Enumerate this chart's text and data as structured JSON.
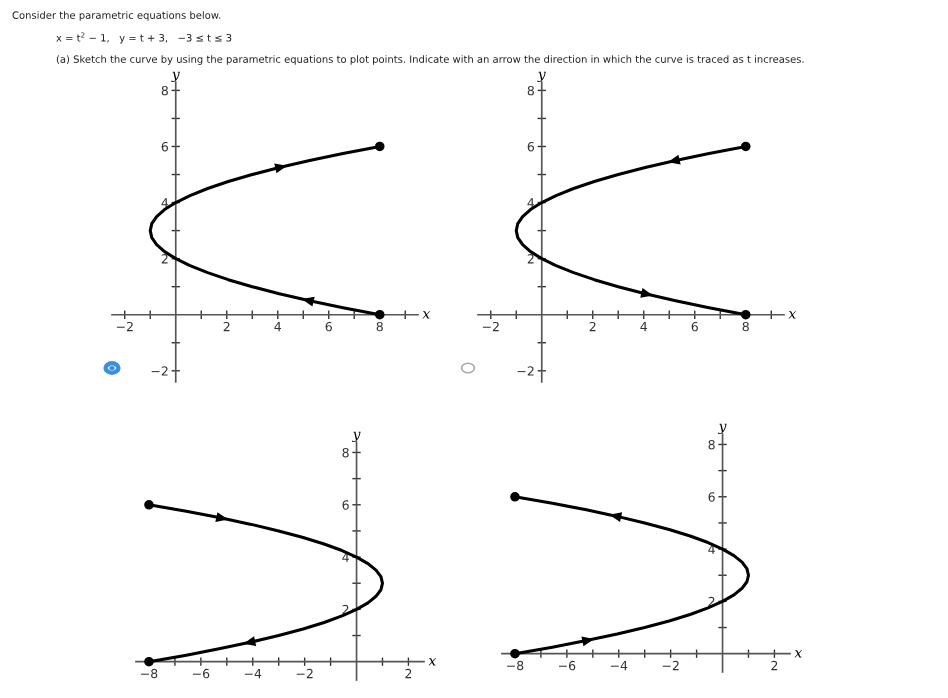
{
  "chart_data": [
    {
      "type": "line",
      "xlabel": "x",
      "ylabel": "y",
      "xlim": [
        -2.5,
        9.5
      ],
      "ylim": [
        -2.4,
        8.3
      ],
      "annotations": [
        "Consider the parametric equations below.",
        "x = t$^{2}$ − 1,   y = t + 3,   −3 ≤ t ≤ 3",
        "(a) Sketch the curve by using the parametric equations to plot points. Indicate with an arrow the direction in which the curve is traced as t increases."
      ],
      "xticks": [
        -2,
        {
          "value": -1,
          "label": null
        },
        {
          "value": 1,
          "label": null
        },
        2,
        {
          "value": 3,
          "label": null
        },
        4,
        {
          "value": 5,
          "label": null
        },
        6,
        {
          "value": 7,
          "label": null
        },
        8,
        {
          "value": 9,
          "label": null
        }
      ],
      "yticks": [
        -2,
        {
          "value": -1,
          "label": null
        },
        {
          "value": 1,
          "label": null
        },
        2,
        {
          "value": 3,
          "label": null
        },
        4,
        {
          "value": 5,
          "label": null
        },
        6,
        {
          "value": 7,
          "label": null
        },
        8
      ],
      "grid": false,
      "series": [
        {
          "type": "line",
          "color": "#000000",
          "x": [
            8,
            6.56,
            5.25,
            4.06,
            3,
            2.06,
            1.25,
            0.56,
            0,
            -0.44,
            -0.75,
            -0.94,
            -1,
            -0.94,
            -0.75,
            -0.44,
            0,
            0.56,
            1.25,
            2.06,
            3,
            4.06,
            5.25,
            6.56,
            8
          ],
          "values": [
            0,
            0.25,
            0.5,
            0.75,
            1,
            1.25,
            1.5,
            1.75,
            2,
            2.25,
            2.5,
            2.75,
            3,
            3.25,
            3.5,
            3.75,
            4,
            4.25,
            4.5,
            4.75,
            5,
            5.25,
            5.5,
            5.75,
            6
          ]
        },
        {
          "type": "scatter",
          "color": "#000000",
          "x": [
            8,
            8
          ],
          "values": [
            0,
            6
          ]
        }
      ]
    },
    {
      "type": "line",
      "xlabel": "x",
      "ylabel": "y",
      "xlim": [
        -2.5,
        9.5
      ],
      "ylim": [
        -2.4,
        8.3
      ],
      "xticks": [
        -2,
        {
          "value": -1,
          "label": null
        },
        {
          "value": 1,
          "label": null
        },
        2,
        {
          "value": 3,
          "label": null
        },
        4,
        {
          "value": 5,
          "label": null
        },
        6,
        {
          "value": 7,
          "label": null
        },
        8,
        {
          "value": 9,
          "label": null
        }
      ],
      "yticks": [
        -2,
        {
          "value": -1,
          "label": null
        },
        {
          "value": 1,
          "label": null
        },
        2,
        {
          "value": 3,
          "label": null
        },
        4,
        {
          "value": 5,
          "label": null
        },
        6,
        {
          "value": 7,
          "label": null
        },
        8
      ],
      "grid": false,
      "series": [
        {
          "type": "line",
          "color": "#000000",
          "x": [
            8,
            6.56,
            5.25,
            4.06,
            3,
            2.06,
            1.25,
            0.56,
            0,
            -0.44,
            -0.75,
            -0.94,
            -1,
            -0.94,
            -0.75,
            -0.44,
            0,
            0.56,
            1.25,
            2.06,
            3,
            4.06,
            5.25,
            6.56,
            8
          ],
          "values": [
            6,
            5.75,
            5.5,
            5.25,
            5,
            4.75,
            4.5,
            4.25,
            4,
            3.75,
            3.5,
            3.25,
            3,
            2.75,
            2.5,
            2.25,
            2,
            1.75,
            1.5,
            1.25,
            1,
            0.75,
            0.5,
            0.25,
            0
          ]
        },
        {
          "type": "scatter",
          "color": "#000000",
          "x": [
            8,
            8
          ],
          "values": [
            0,
            6
          ]
        }
      ]
    },
    {
      "type": "line",
      "xlabel": "x",
      "ylabel": "y",
      "xlim": [
        -8.5,
        2.6
      ],
      "ylim": [
        -0.7,
        8.4
      ],
      "xticks": [
        -8,
        {
          "value": -7,
          "label": null
        },
        -6,
        {
          "value": -5,
          "label": null
        },
        -4,
        {
          "value": -3,
          "label": null
        },
        -2,
        {
          "value": -1,
          "label": null
        },
        {
          "value": 1,
          "label": null
        },
        2
      ],
      "yticks": [
        {
          "value": 1,
          "label": null
        },
        2,
        {
          "value": 3,
          "label": null
        },
        4,
        {
          "value": 5,
          "label": null
        },
        6,
        {
          "value": 7,
          "label": null
        },
        8
      ],
      "grid": false,
      "series": [
        {
          "type": "line",
          "color": "#000000",
          "x": [
            -8,
            -6.56,
            -5.25,
            -4.06,
            -3,
            -2.06,
            -1.25,
            -0.56,
            0,
            0.44,
            0.75,
            0.94,
            1,
            0.94,
            0.75,
            0.44,
            0,
            -0.56,
            -1.25,
            -2.06,
            -3,
            -4.06,
            -5.25,
            -6.56,
            -8
          ],
          "values": [
            6,
            5.75,
            5.5,
            5.25,
            5,
            4.75,
            4.5,
            4.25,
            4,
            3.75,
            3.5,
            3.25,
            3,
            2.75,
            2.5,
            2.25,
            2,
            1.75,
            1.5,
            1.25,
            1,
            0.75,
            0.5,
            0.25,
            0
          ]
        },
        {
          "type": "scatter",
          "color": "#000000",
          "x": [
            -8,
            -8
          ],
          "values": [
            0,
            6
          ]
        }
      ]
    },
    {
      "type": "line",
      "xlabel": "x",
      "ylabel": "y",
      "xlim": [
        -8.5,
        2.6
      ],
      "ylim": [
        -0.7,
        8.4
      ],
      "xticks": [
        -8,
        {
          "value": -7,
          "label": null
        },
        -6,
        {
          "value": -5,
          "label": null
        },
        -4,
        {
          "value": -3,
          "label": null
        },
        -2,
        {
          "value": -1,
          "label": null
        },
        {
          "value": 1,
          "label": null
        },
        2
      ],
      "yticks": [
        {
          "value": 1,
          "label": null
        },
        2,
        {
          "value": 3,
          "label": null
        },
        4,
        {
          "value": 5,
          "label": null
        },
        6,
        {
          "value": 7,
          "label": null
        },
        8
      ],
      "grid": false,
      "series": [
        {
          "type": "line",
          "color": "#000000",
          "x": [
            -8,
            -6.56,
            -5.25,
            -4.06,
            -3,
            -2.06,
            -1.25,
            -0.56,
            0,
            0.44,
            0.75,
            0.94,
            1,
            0.94,
            0.75,
            0.44,
            0,
            -0.56,
            -1.25,
            -2.06,
            -3,
            -4.06,
            -5.25,
            -6.56,
            -8
          ],
          "values": [
            0,
            0.25,
            0.5,
            0.75,
            1,
            1.25,
            1.5,
            1.75,
            2,
            2.25,
            2.5,
            2.75,
            3,
            3.25,
            3.5,
            3.75,
            4,
            4.25,
            4.5,
            4.75,
            5,
            5.25,
            5.5,
            5.75,
            6
          ]
        },
        {
          "type": "scatter",
          "color": "#000000",
          "x": [
            -8,
            -8
          ],
          "values": [
            0,
            6
          ]
        }
      ]
    }
  ]
}
